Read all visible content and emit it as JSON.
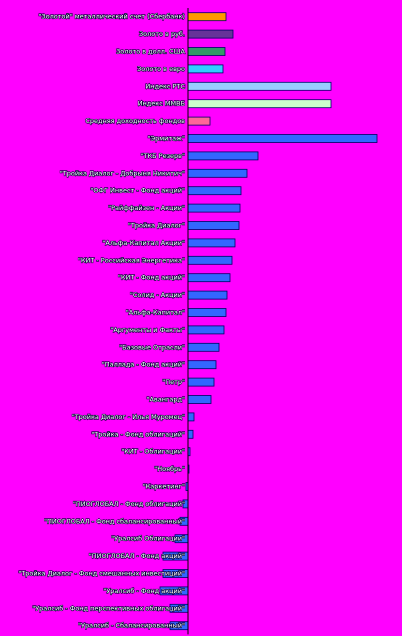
{
  "chart_data": {
    "type": "bar",
    "orientation": "horizontal",
    "categories": [
      "\"Золотой\" металлический счет (Сбербанк)",
      "Золото в руб.",
      "Золото в долл. США",
      "Золото в евро",
      "Индекс РТС",
      "Индекс ММВБ",
      "Средняя доходность фондов",
      "\"Эрмитаж\"",
      "\"ТКБ Резерв\"",
      "\"Тройка Диалог - Добрыня Никитич\"",
      "\"ОФГ Инвест - Фонд акций\"",
      "\"Райффайзен - Акции\"",
      "\"Тройка Диалог\"",
      "\"Альфа-Капитал Акции\"",
      "\"КИТ - Российская Энергетика\"",
      "\"КИТ - Фонд акций\"",
      "\"Солид - Акции\"",
      "\"Альфа-Капитал\"",
      "\"Аргументы и Факты\"",
      "\"Базовые Отрасли\"",
      "\"Паллада - Фонд акций\"",
      "\"Петр\"",
      "\"Авангард\"",
      "\"Тройка Диалог - Илья Муромец\"",
      "\"Тройка - Фонд облигаций\"",
      "\"КИТ - Облигации\"",
      "\"Ноябрь\"",
      "\"Каркетинг\"",
      "\"ПИОГЛОБАЛ - Фонд облигаций\"",
      "\"ПИОГЛОБАЛ - Фонд сбалансированный\"",
      "\"Уралсиб Облигации\"",
      "\"ПИОГЛОБАЛ - Фонд акций\"",
      "\"Тройка Диалог - Фонд смешанных инвестиций\"",
      "\"Уралсиб - Фонд акций\"",
      "\"Уралсиб - Фонд перспективных облигаций\"",
      "\"Уралсиб - Сбалансированный\""
    ],
    "values": [
      19,
      22.5,
      18.5,
      17.5,
      71.5,
      71.5,
      11,
      94.5,
      35,
      29.5,
      26.5,
      26,
      25.5,
      23.5,
      22,
      21,
      19.5,
      19,
      18,
      15.5,
      14,
      13,
      11.5,
      3,
      2.5,
      1,
      0.5,
      -1,
      -2.5,
      -4,
      -6.5,
      -12.5,
      -12.5,
      -14,
      -9,
      -9
    ],
    "colors": [
      "#ff9900",
      "#663399",
      "#339966",
      "#33ccff",
      "#99ccff",
      "#ccffcc",
      "#ff6699",
      "#3366ff",
      "#3366ff",
      "#3366ff",
      "#3366ff",
      "#3366ff",
      "#3366ff",
      "#3366ff",
      "#3366ff",
      "#3366ff",
      "#3366ff",
      "#3366ff",
      "#3366ff",
      "#3366ff",
      "#3366ff",
      "#3366ff",
      "#3366ff",
      "#3366ff",
      "#3366ff",
      "#3366ff",
      "#3366ff",
      "#3366ff",
      "#3366ff",
      "#3366ff",
      "#3366ff",
      "#3366ff",
      "#3366ff",
      "#3366ff",
      "#3366ff",
      "#3366ff"
    ]
  }
}
